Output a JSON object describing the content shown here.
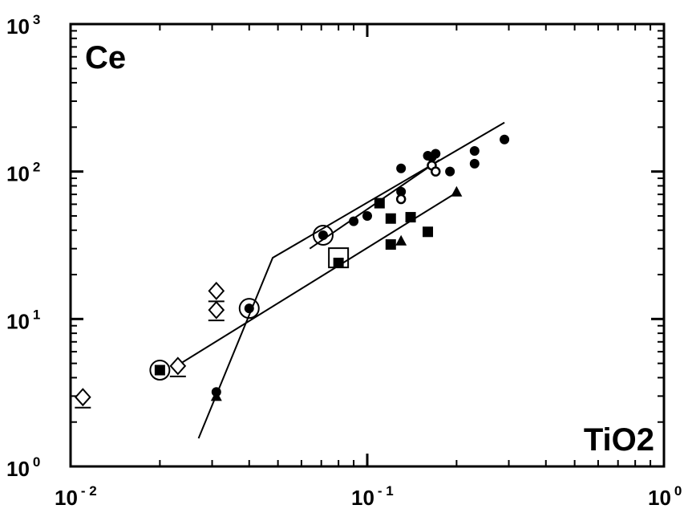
{
  "chart_data": {
    "type": "scatter",
    "xscale": "log",
    "yscale": "log",
    "xlim": [
      0.01,
      1
    ],
    "ylim": [
      1,
      1000
    ],
    "grid": false,
    "xticks": [
      {
        "value": 0.01,
        "base": "10",
        "exp": "- 2"
      },
      {
        "value": 0.1,
        "base": "10",
        "exp": "- 1"
      },
      {
        "value": 1,
        "base": "10",
        "exp": "0"
      }
    ],
    "yticks": [
      {
        "value": 1,
        "base": "10",
        "exp": "0"
      },
      {
        "value": 10,
        "base": "10",
        "exp": "1"
      },
      {
        "value": 100,
        "base": "10",
        "exp": "2"
      },
      {
        "value": 1000,
        "base": "10",
        "exp": "3"
      }
    ],
    "annotations": {
      "top_left": "Ce",
      "bottom_right": "TiO2"
    },
    "lines": [
      {
        "points": [
          [
            0.027,
            1.55
          ],
          [
            0.048,
            26
          ],
          [
            0.29,
            215
          ]
        ]
      },
      {
        "points": [
          [
            0.022,
            4.6
          ],
          [
            0.2,
            72
          ]
        ]
      },
      {
        "points": [
          [
            0.064,
            30
          ],
          [
            0.175,
            120
          ]
        ]
      }
    ],
    "series": [
      {
        "marker": "filled-circle",
        "points": [
          [
            0.04,
            11.8
          ],
          [
            0.071,
            37
          ],
          [
            0.09,
            46
          ],
          [
            0.1,
            50
          ],
          [
            0.13,
            105
          ],
          [
            0.13,
            73
          ],
          [
            0.16,
            128
          ],
          [
            0.165,
            125
          ],
          [
            0.17,
            132
          ],
          [
            0.19,
            100
          ],
          [
            0.23,
            138
          ],
          [
            0.23,
            113
          ],
          [
            0.29,
            165
          ],
          [
            0.031,
            3.2
          ]
        ]
      },
      {
        "marker": "open-circle",
        "points": [
          [
            0.13,
            65
          ],
          [
            0.165,
            110
          ],
          [
            0.17,
            100
          ]
        ]
      },
      {
        "marker": "filled-square",
        "points": [
          [
            0.02,
            4.5
          ],
          [
            0.08,
            24
          ],
          [
            0.11,
            61
          ],
          [
            0.12,
            48
          ],
          [
            0.12,
            32
          ],
          [
            0.14,
            49
          ],
          [
            0.16,
            39
          ]
        ]
      },
      {
        "marker": "filled-triangle",
        "points": [
          [
            0.031,
            3.0
          ],
          [
            0.13,
            34
          ],
          [
            0.2,
            73
          ]
        ]
      },
      {
        "marker": "open-diamond",
        "points": [
          [
            0.011,
            2.95
          ],
          [
            0.023,
            4.8
          ],
          [
            0.031,
            15.5
          ],
          [
            0.031,
            11.5
          ]
        ]
      },
      {
        "marker": "open-square",
        "points": [
          [
            0.08,
            26
          ]
        ]
      },
      {
        "marker": "ring",
        "points": [
          [
            0.02,
            4.5
          ],
          [
            0.04,
            11.8
          ],
          [
            0.071,
            37
          ]
        ]
      }
    ]
  }
}
